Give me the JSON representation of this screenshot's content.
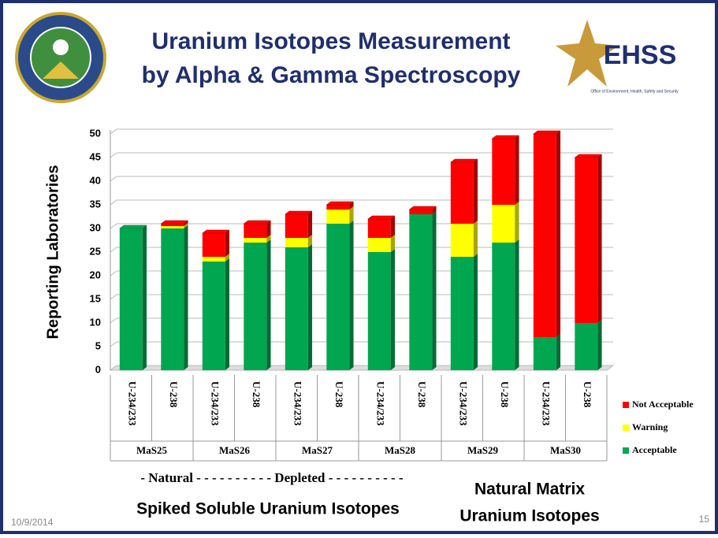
{
  "slide": {
    "title_line1": "Uranium Isotopes Measurement",
    "title_line2": "by Alpha & Gamma Spectroscopy",
    "logo_text": "EHSS",
    "logo_subtext": "Office of Environment, Health, Safety and Security",
    "natural_depleted": "- Natural - - - - - - - - - - Depleted - - - - - - - - - -",
    "spiked": "Spiked Soluble Uranium Isotopes",
    "matrix_line1": "Natural Matrix",
    "matrix_line2": "Uranium Isotopes",
    "date": "10/9/2014",
    "page": "15"
  },
  "chart_data": {
    "type": "stacked_bar",
    "ylabel": "Reporting Laboratories",
    "categories": [
      "U-234/233",
      "U-238",
      "U-234/233",
      "U-238",
      "U-234/233",
      "U-238",
      "U-234/233",
      "U-238",
      "U-234/233",
      "U-238",
      "U-234/233",
      "U-238"
    ],
    "groups": [
      "MaS25",
      "MaS26",
      "MaS27",
      "MaS28",
      "MaS29",
      "MaS30"
    ],
    "series": [
      {
        "name": "Acceptable",
        "color": "#00a650",
        "values": [
          30,
          30,
          23,
          27,
          26,
          31,
          25,
          33,
          24,
          27,
          7,
          10
        ]
      },
      {
        "name": "Warning",
        "color": "#ffff00",
        "values": [
          0,
          0.5,
          1,
          1,
          2,
          3,
          3,
          0,
          7,
          8,
          0,
          0
        ]
      },
      {
        "name": "Not Acceptable",
        "color": "#ff0000",
        "values": [
          0,
          0.5,
          5,
          3,
          5,
          1,
          4,
          1,
          13,
          14,
          43,
          35
        ]
      }
    ],
    "ylim": [
      0,
      50
    ],
    "yticks": [
      0,
      5,
      10,
      15,
      20,
      25,
      30,
      35,
      40,
      45,
      50
    ],
    "grid": true,
    "legend": "right"
  }
}
